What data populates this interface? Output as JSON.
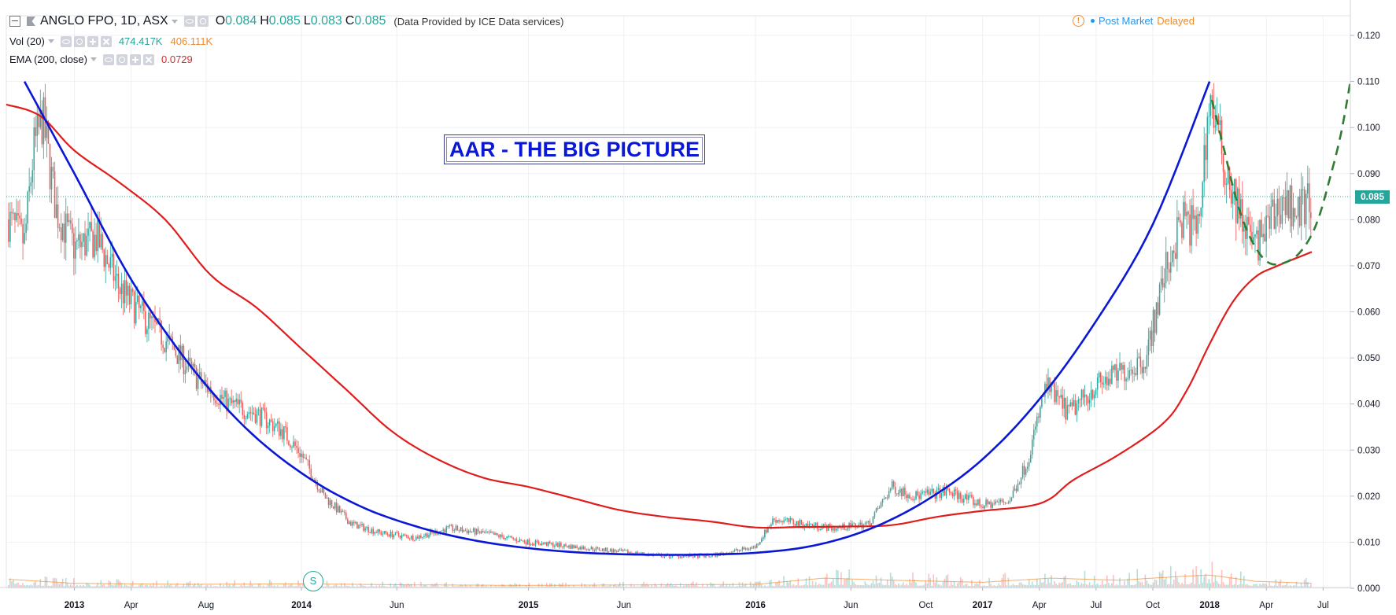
{
  "header": {
    "symbol": "ANGLO FPO, 1D, ASX",
    "ohlc": [
      {
        "label": "O",
        "value": "0.084"
      },
      {
        "label": "H",
        "value": "0.085"
      },
      {
        "label": "L",
        "value": "0.083"
      },
      {
        "label": "C",
        "value": "0.085"
      }
    ],
    "provider": "(Data Provided by ICE Data services)",
    "volume_label": "Vol (20)",
    "volume_value": "474.417K",
    "volume_ma": "406.111K",
    "ema_label": "EMA (200, close)",
    "ema_value": "0.0729",
    "post_market": "Post Market",
    "delayed": "Delayed",
    "current_price": "0.085",
    "signal_marker": "S"
  },
  "colors": {
    "up": "#26a69a",
    "down": "#ef5350",
    "ema": "#e01d1d",
    "cup_curve": "#0a18d6",
    "handle_curve": "#2e7d32",
    "accent": "#2196f3",
    "delayed": "#ef8b2c"
  },
  "chart_data": {
    "type": "candlestick",
    "title": "AAR - THE BIG PICTURE",
    "ylim": [
      0,
      0.12
    ],
    "y_ticks": [
      "0.000",
      "0.010",
      "0.020",
      "0.030",
      "0.040",
      "0.050",
      "0.060",
      "0.070",
      "0.080",
      "0.090",
      "0.100",
      "0.110",
      "0.120"
    ],
    "x_labels": [
      {
        "label": "2013",
        "t": 2013.0,
        "year": true
      },
      {
        "label": "Apr",
        "t": 2013.25,
        "year": false
      },
      {
        "label": "Aug",
        "t": 2013.58,
        "year": false
      },
      {
        "label": "2014",
        "t": 2014.0,
        "year": true
      },
      {
        "label": "Jun",
        "t": 2014.42,
        "year": false
      },
      {
        "label": "2015",
        "t": 2015.0,
        "year": true
      },
      {
        "label": "Jun",
        "t": 2015.42,
        "year": false
      },
      {
        "label": "2016",
        "t": 2016.0,
        "year": true
      },
      {
        "label": "Jun",
        "t": 2016.42,
        "year": false
      },
      {
        "label": "Oct",
        "t": 2016.75,
        "year": false
      },
      {
        "label": "2017",
        "t": 2017.0,
        "year": true
      },
      {
        "label": "Apr",
        "t": 2017.25,
        "year": false
      },
      {
        "label": "Jul",
        "t": 2017.5,
        "year": false
      },
      {
        "label": "Oct",
        "t": 2017.75,
        "year": false
      },
      {
        "label": "2018",
        "t": 2018.0,
        "year": true
      },
      {
        "label": "Apr",
        "t": 2018.25,
        "year": false
      },
      {
        "label": "Jul",
        "t": 2018.5,
        "year": false
      }
    ],
    "xlim": [
      2012.7,
      2018.62
    ],
    "price_path": [
      [
        2012.71,
        0.08
      ],
      [
        2012.78,
        0.075
      ],
      [
        2012.82,
        0.095
      ],
      [
        2012.86,
        0.102
      ],
      [
        2012.92,
        0.082
      ],
      [
        2013.0,
        0.074
      ],
      [
        2013.1,
        0.076
      ],
      [
        2013.2,
        0.065
      ],
      [
        2013.3,
        0.059
      ],
      [
        2013.42,
        0.053
      ],
      [
        2013.55,
        0.045
      ],
      [
        2013.68,
        0.04
      ],
      [
        2013.8,
        0.038
      ],
      [
        2013.92,
        0.034
      ],
      [
        2014.0,
        0.029
      ],
      [
        2014.1,
        0.02
      ],
      [
        2014.22,
        0.014
      ],
      [
        2014.35,
        0.012
      ],
      [
        2014.5,
        0.011
      ],
      [
        2014.65,
        0.013
      ],
      [
        2014.8,
        0.012
      ],
      [
        2015.0,
        0.01
      ],
      [
        2015.2,
        0.009
      ],
      [
        2015.4,
        0.008
      ],
      [
        2015.6,
        0.007
      ],
      [
        2015.8,
        0.007
      ],
      [
        2016.0,
        0.009
      ],
      [
        2016.08,
        0.015
      ],
      [
        2016.2,
        0.014
      ],
      [
        2016.35,
        0.013
      ],
      [
        2016.5,
        0.014
      ],
      [
        2016.6,
        0.022
      ],
      [
        2016.7,
        0.02
      ],
      [
        2016.85,
        0.021
      ],
      [
        2017.0,
        0.018
      ],
      [
        2017.12,
        0.019
      ],
      [
        2017.2,
        0.028
      ],
      [
        2017.28,
        0.044
      ],
      [
        2017.38,
        0.038
      ],
      [
        2017.5,
        0.044
      ],
      [
        2017.62,
        0.047
      ],
      [
        2017.72,
        0.05
      ],
      [
        2017.8,
        0.068
      ],
      [
        2017.88,
        0.08
      ],
      [
        2017.95,
        0.078
      ],
      [
        2018.0,
        0.107
      ],
      [
        2018.05,
        0.095
      ],
      [
        2018.12,
        0.083
      ],
      [
        2018.2,
        0.074
      ],
      [
        2018.25,
        0.078
      ],
      [
        2018.32,
        0.084
      ],
      [
        2018.4,
        0.082
      ],
      [
        2018.45,
        0.085
      ]
    ],
    "volume_scale_max": 10000000,
    "volume_path": [
      [
        2012.7,
        800000
      ],
      [
        2013.0,
        400000
      ],
      [
        2013.5,
        300000
      ],
      [
        2014.0,
        350000
      ],
      [
        2014.5,
        250000
      ],
      [
        2015.0,
        200000
      ],
      [
        2015.5,
        250000
      ],
      [
        2016.0,
        300000
      ],
      [
        2016.3,
        900000
      ],
      [
        2016.6,
        700000
      ],
      [
        2017.0,
        500000
      ],
      [
        2017.3,
        900000
      ],
      [
        2017.6,
        700000
      ],
      [
        2017.9,
        1100000
      ],
      [
        2018.0,
        1200000
      ],
      [
        2018.2,
        600000
      ],
      [
        2018.45,
        400000
      ]
    ],
    "ema_200": [
      [
        2012.7,
        0.105
      ],
      [
        2012.85,
        0.1025
      ],
      [
        2013.0,
        0.095
      ],
      [
        2013.2,
        0.088
      ],
      [
        2013.4,
        0.08
      ],
      [
        2013.6,
        0.068
      ],
      [
        2013.8,
        0.061
      ],
      [
        2014.0,
        0.052
      ],
      [
        2014.2,
        0.043
      ],
      [
        2014.4,
        0.034
      ],
      [
        2014.6,
        0.028
      ],
      [
        2014.8,
        0.024
      ],
      [
        2015.0,
        0.022
      ],
      [
        2015.2,
        0.0195
      ],
      [
        2015.4,
        0.017
      ],
      [
        2015.6,
        0.0155
      ],
      [
        2015.8,
        0.0145
      ],
      [
        2016.0,
        0.0132
      ],
      [
        2016.2,
        0.0133
      ],
      [
        2016.4,
        0.0134
      ],
      [
        2016.6,
        0.0137
      ],
      [
        2016.8,
        0.0155
      ],
      [
        2017.0,
        0.0168
      ],
      [
        2017.2,
        0.0178
      ],
      [
        2017.3,
        0.0195
      ],
      [
        2017.4,
        0.0235
      ],
      [
        2017.6,
        0.029
      ],
      [
        2017.8,
        0.036
      ],
      [
        2017.9,
        0.043
      ],
      [
        2018.0,
        0.053
      ],
      [
        2018.1,
        0.062
      ],
      [
        2018.2,
        0.0675
      ],
      [
        2018.3,
        0.07
      ],
      [
        2018.45,
        0.073
      ]
    ],
    "cup_curve": [
      [
        2012.78,
        0.11
      ],
      [
        2013.0,
        0.09
      ],
      [
        2013.25,
        0.067
      ],
      [
        2013.5,
        0.049
      ],
      [
        2013.75,
        0.035
      ],
      [
        2014.0,
        0.025
      ],
      [
        2014.25,
        0.018
      ],
      [
        2014.5,
        0.0135
      ],
      [
        2014.75,
        0.0105
      ],
      [
        2015.0,
        0.0087
      ],
      [
        2015.25,
        0.0077
      ],
      [
        2015.5,
        0.0073
      ],
      [
        2015.75,
        0.0073
      ],
      [
        2016.0,
        0.0077
      ],
      [
        2016.25,
        0.0092
      ],
      [
        2016.5,
        0.0128
      ],
      [
        2016.75,
        0.019
      ],
      [
        2017.0,
        0.028
      ],
      [
        2017.25,
        0.041
      ],
      [
        2017.5,
        0.058
      ],
      [
        2017.75,
        0.079
      ],
      [
        2018.0,
        0.11
      ]
    ],
    "handle_curve": [
      [
        2018.01,
        0.106
      ],
      [
        2018.06,
        0.096
      ],
      [
        2018.12,
        0.084
      ],
      [
        2018.18,
        0.076
      ],
      [
        2018.25,
        0.071
      ],
      [
        2018.32,
        0.0705
      ],
      [
        2018.4,
        0.073
      ],
      [
        2018.47,
        0.079
      ],
      [
        2018.53,
        0.089
      ],
      [
        2018.58,
        0.099
      ],
      [
        2018.62,
        0.11
      ]
    ]
  }
}
